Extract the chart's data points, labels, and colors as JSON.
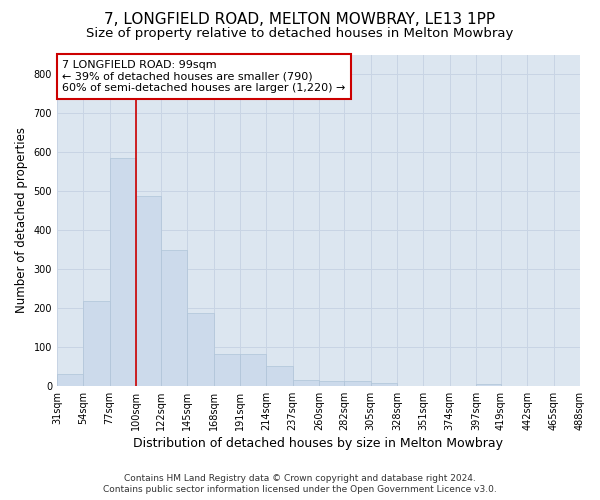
{
  "title": "7, LONGFIELD ROAD, MELTON MOWBRAY, LE13 1PP",
  "subtitle": "Size of property relative to detached houses in Melton Mowbray",
  "xlabel": "Distribution of detached houses by size in Melton Mowbray",
  "ylabel": "Number of detached properties",
  "footer_line1": "Contains HM Land Registry data © Crown copyright and database right 2024.",
  "footer_line2": "Contains public sector information licensed under the Open Government Licence v3.0.",
  "annotation_line1": "7 LONGFIELD ROAD: 99sqm",
  "annotation_line2": "← 39% of detached houses are smaller (790)",
  "annotation_line3": "60% of semi-detached houses are larger (1,220) →",
  "bin_edges": [
    31,
    54,
    77,
    100,
    122,
    145,
    168,
    191,
    214,
    237,
    260,
    282,
    305,
    328,
    351,
    374,
    397,
    419,
    442,
    465,
    488
  ],
  "bar_heights": [
    30,
    218,
    585,
    488,
    348,
    188,
    83,
    83,
    50,
    15,
    13,
    12,
    7,
    0,
    0,
    0,
    5,
    0,
    0,
    0,
    0
  ],
  "bar_color": "#ccdaeb",
  "bar_edge_color": "#afc4d8",
  "vline_color": "#cc0000",
  "vline_x": 100,
  "ylim": [
    0,
    850
  ],
  "yticks": [
    0,
    100,
    200,
    300,
    400,
    500,
    600,
    700,
    800
  ],
  "grid_color": "#c8d4e4",
  "bg_color": "#dce6f0",
  "annotation_box_facecolor": "#ffffff",
  "annotation_box_edgecolor": "#cc0000",
  "title_fontsize": 11,
  "subtitle_fontsize": 9.5,
  "ylabel_fontsize": 8.5,
  "xlabel_fontsize": 9,
  "tick_fontsize": 7,
  "annotation_fontsize": 8,
  "footer_fontsize": 6.5
}
